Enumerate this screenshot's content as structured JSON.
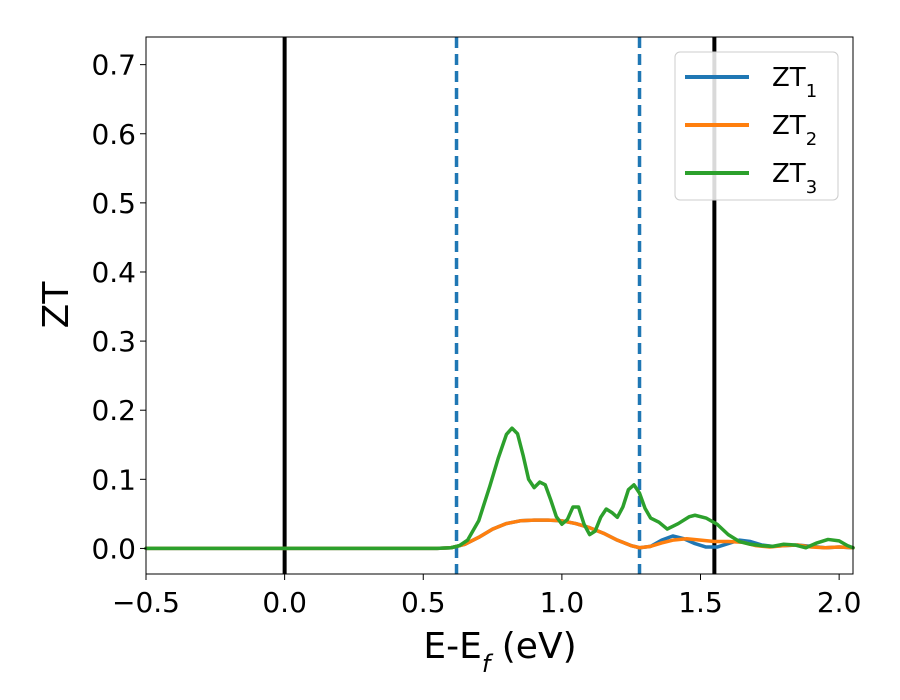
{
  "chart_data": {
    "type": "line",
    "xlabel_main": "E-E",
    "xlabel_sub": "f",
    "xlabel_unit": " (eV)",
    "ylabel": "ZT",
    "xlim": [
      -0.5,
      2.05
    ],
    "ylim": [
      -0.037,
      0.74
    ],
    "grid": false,
    "legend_position": "top-right",
    "x_ticks": [
      -0.5,
      0.0,
      0.5,
      1.0,
      1.5,
      2.0
    ],
    "x_tick_labels": [
      "−0.5",
      "0.0",
      "0.5",
      "1.0",
      "1.5",
      "2.0"
    ],
    "y_ticks": [
      0.0,
      0.1,
      0.2,
      0.3,
      0.4,
      0.5,
      0.6,
      0.7
    ],
    "y_tick_labels": [
      "0.0",
      "0.1",
      "0.2",
      "0.3",
      "0.4",
      "0.5",
      "0.6",
      "0.7"
    ],
    "vlines": [
      {
        "x": 0.0,
        "style": "solid",
        "color": "#000000"
      },
      {
        "x": 1.55,
        "style": "solid",
        "color": "#000000"
      },
      {
        "x": 0.62,
        "style": "dashed",
        "color": "#1f77b4"
      },
      {
        "x": 1.28,
        "style": "dashed",
        "color": "#1f77b4"
      }
    ],
    "series": [
      {
        "name_main": "ZT",
        "name_sub": "1",
        "color": "#1f77b4",
        "points": [
          [
            -0.5,
            0
          ],
          [
            0.55,
            0
          ],
          [
            0.6,
            0.001
          ],
          [
            0.65,
            0.006
          ],
          [
            0.7,
            0.016
          ],
          [
            0.75,
            0.028
          ],
          [
            0.8,
            0.036
          ],
          [
            0.85,
            0.04
          ],
          [
            0.9,
            0.041
          ],
          [
            0.95,
            0.041
          ],
          [
            1.0,
            0.04
          ],
          [
            1.05,
            0.036
          ],
          [
            1.1,
            0.03
          ],
          [
            1.15,
            0.022
          ],
          [
            1.2,
            0.012
          ],
          [
            1.25,
            0.004
          ],
          [
            1.28,
            0.001
          ],
          [
            1.32,
            0.003
          ],
          [
            1.36,
            0.012
          ],
          [
            1.4,
            0.018
          ],
          [
            1.44,
            0.014
          ],
          [
            1.48,
            0.007
          ],
          [
            1.52,
            0.002
          ],
          [
            1.56,
            0.002
          ],
          [
            1.6,
            0.007
          ],
          [
            1.64,
            0.012
          ],
          [
            1.68,
            0.01
          ],
          [
            1.72,
            0.005
          ],
          [
            1.76,
            0.003
          ],
          [
            1.8,
            0.004
          ],
          [
            1.85,
            0.005
          ],
          [
            1.9,
            0.003
          ],
          [
            1.95,
            0.001
          ],
          [
            2.0,
            0.002
          ],
          [
            2.05,
            0.001
          ]
        ]
      },
      {
        "name_main": "ZT",
        "name_sub": "2",
        "color": "#ff7f0e",
        "points": [
          [
            -0.5,
            0
          ],
          [
            0.55,
            0
          ],
          [
            0.6,
            0.001
          ],
          [
            0.65,
            0.006
          ],
          [
            0.7,
            0.016
          ],
          [
            0.75,
            0.028
          ],
          [
            0.8,
            0.036
          ],
          [
            0.85,
            0.04
          ],
          [
            0.9,
            0.041
          ],
          [
            0.95,
            0.041
          ],
          [
            1.0,
            0.04
          ],
          [
            1.05,
            0.036
          ],
          [
            1.1,
            0.03
          ],
          [
            1.15,
            0.022
          ],
          [
            1.2,
            0.012
          ],
          [
            1.25,
            0.004
          ],
          [
            1.28,
            0.001
          ],
          [
            1.32,
            0.003
          ],
          [
            1.36,
            0.008
          ],
          [
            1.4,
            0.012
          ],
          [
            1.45,
            0.014
          ],
          [
            1.5,
            0.012
          ],
          [
            1.55,
            0.01
          ],
          [
            1.6,
            0.01
          ],
          [
            1.65,
            0.009
          ],
          [
            1.7,
            0.004
          ],
          [
            1.75,
            0.002
          ],
          [
            1.8,
            0.004
          ],
          [
            1.85,
            0.005
          ],
          [
            1.9,
            0.002
          ],
          [
            1.95,
            0.001
          ],
          [
            2.0,
            0.002
          ],
          [
            2.05,
            0.001
          ]
        ]
      },
      {
        "name_main": "ZT",
        "name_sub": "3",
        "color": "#2ca02c",
        "points": [
          [
            -0.5,
            0
          ],
          [
            0.55,
            0
          ],
          [
            0.6,
            0.001
          ],
          [
            0.63,
            0.004
          ],
          [
            0.66,
            0.012
          ],
          [
            0.7,
            0.04
          ],
          [
            0.74,
            0.09
          ],
          [
            0.77,
            0.13
          ],
          [
            0.8,
            0.165
          ],
          [
            0.82,
            0.174
          ],
          [
            0.84,
            0.166
          ],
          [
            0.86,
            0.135
          ],
          [
            0.88,
            0.1
          ],
          [
            0.9,
            0.088
          ],
          [
            0.92,
            0.096
          ],
          [
            0.94,
            0.092
          ],
          [
            0.96,
            0.07
          ],
          [
            0.98,
            0.046
          ],
          [
            1.0,
            0.035
          ],
          [
            1.02,
            0.042
          ],
          [
            1.04,
            0.06
          ],
          [
            1.06,
            0.06
          ],
          [
            1.08,
            0.035
          ],
          [
            1.1,
            0.02
          ],
          [
            1.12,
            0.025
          ],
          [
            1.14,
            0.045
          ],
          [
            1.16,
            0.057
          ],
          [
            1.18,
            0.052
          ],
          [
            1.2,
            0.045
          ],
          [
            1.22,
            0.06
          ],
          [
            1.24,
            0.085
          ],
          [
            1.26,
            0.092
          ],
          [
            1.28,
            0.08
          ],
          [
            1.3,
            0.058
          ],
          [
            1.32,
            0.044
          ],
          [
            1.35,
            0.038
          ],
          [
            1.38,
            0.028
          ],
          [
            1.42,
            0.036
          ],
          [
            1.46,
            0.046
          ],
          [
            1.48,
            0.048
          ],
          [
            1.52,
            0.044
          ],
          [
            1.56,
            0.035
          ],
          [
            1.6,
            0.02
          ],
          [
            1.64,
            0.01
          ],
          [
            1.68,
            0.006
          ],
          [
            1.72,
            0.004
          ],
          [
            1.76,
            0.003
          ],
          [
            1.8,
            0.006
          ],
          [
            1.84,
            0.005
          ],
          [
            1.88,
            0.001
          ],
          [
            1.92,
            0.008
          ],
          [
            1.96,
            0.013
          ],
          [
            2.0,
            0.011
          ],
          [
            2.03,
            0.004
          ],
          [
            2.05,
            0.001
          ]
        ]
      }
    ]
  }
}
